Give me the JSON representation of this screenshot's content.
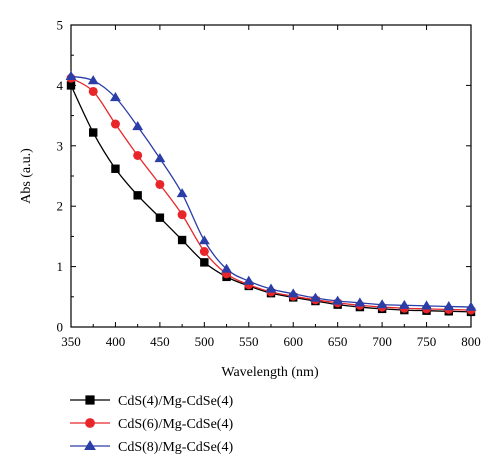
{
  "chart_data": {
    "type": "line",
    "xlabel": "Wavelength (nm)",
    "ylabel": "Abs (a.u.)",
    "xlim": [
      350,
      800
    ],
    "ylim": [
      0,
      5
    ],
    "xticks": [
      350,
      400,
      450,
      500,
      550,
      600,
      650,
      700,
      750,
      800
    ],
    "yticks": [
      0,
      1,
      2,
      3,
      4,
      5
    ],
    "grid": false,
    "legend_position": "bottom",
    "x": [
      350,
      375,
      400,
      425,
      450,
      475,
      500,
      525,
      550,
      575,
      600,
      625,
      650,
      675,
      700,
      725,
      750,
      775,
      800
    ],
    "series": [
      {
        "name": "CdS(4)/Mg-CdSe(4)",
        "color": "#000000",
        "marker": "square",
        "values": [
          4.0,
          3.22,
          2.62,
          2.18,
          1.81,
          1.44,
          1.07,
          0.83,
          0.68,
          0.56,
          0.49,
          0.43,
          0.37,
          0.33,
          0.3,
          0.28,
          0.27,
          0.26,
          0.25
        ]
      },
      {
        "name": "CdS(6)/Mg-CdSe(4)",
        "color": "#e8262a",
        "marker": "circle",
        "values": [
          4.12,
          3.9,
          3.36,
          2.84,
          2.36,
          1.86,
          1.25,
          0.88,
          0.7,
          0.58,
          0.51,
          0.45,
          0.4,
          0.36,
          0.33,
          0.31,
          0.3,
          0.29,
          0.28
        ]
      },
      {
        "name": "CdS(8)/Mg-CdSe(4)",
        "color": "#2b3ea8",
        "marker": "triangle",
        "values": [
          4.15,
          4.08,
          3.8,
          3.32,
          2.79,
          2.21,
          1.43,
          0.96,
          0.76,
          0.63,
          0.55,
          0.48,
          0.43,
          0.4,
          0.37,
          0.36,
          0.35,
          0.34,
          0.33
        ]
      }
    ]
  }
}
